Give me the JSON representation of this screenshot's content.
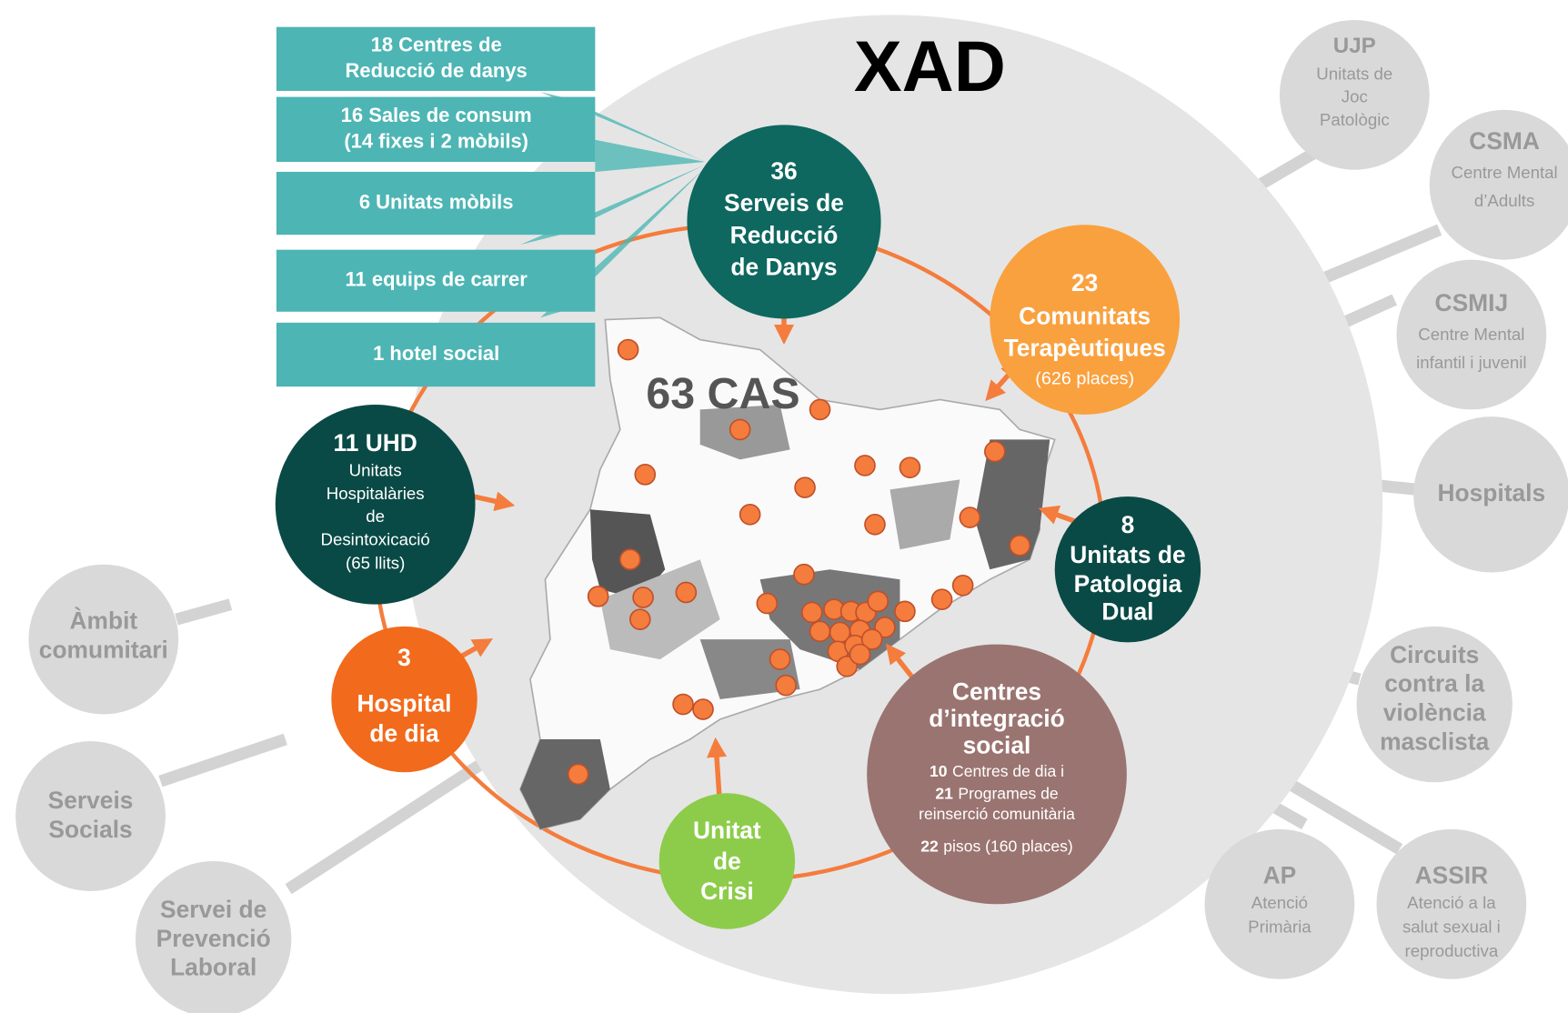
{
  "title": "XAD",
  "map_label": "63 CAS",
  "boxes": [
    {
      "lines": [
        "18 Centres de",
        "Reducció de danys"
      ]
    },
    {
      "lines": [
        "16 Sales de consum",
        "(14 fixes i 2 mòbils)"
      ]
    },
    {
      "lines": [
        "6 Unitats mòbils"
      ]
    },
    {
      "lines": [
        "11 equips de carrer"
      ]
    },
    {
      "lines": [
        "1 hotel social"
      ]
    }
  ],
  "services": [
    {
      "lines": [
        "36",
        "Serveis de",
        "Reducció",
        "de Danys"
      ]
    },
    {
      "lines": [
        "23",
        "Comunitats",
        "Terapèutiques",
        "(626 places)"
      ]
    },
    {
      "lines": [
        "8",
        "Unitats de",
        "Patologia",
        "Dual"
      ]
    },
    {
      "lines": [
        "Centres",
        "d’integració",
        "social",
        {
          "bold": "10",
          "text": "Centres de dia i"
        },
        {
          "bold": "21",
          "text": "Programes de"
        },
        "reinserció comunitària",
        {
          "bold": "22",
          "text": "pisos (160 places)"
        }
      ]
    },
    {
      "lines": [
        "Unitat",
        "de",
        "Crisi"
      ]
    },
    {
      "lines": [
        "3",
        "Hospital",
        "de dia"
      ]
    },
    {
      "lines": [
        "11 UHD",
        "Unitats",
        "Hospitalàries",
        "de",
        "Desintoxicació",
        "(65 llits)"
      ]
    }
  ],
  "external": [
    {
      "lines": [
        "UJP",
        "Unitats de",
        "Joc",
        "Patològic"
      ]
    },
    {
      "lines": [
        "CSMA",
        "Centre Mental",
        "d’Adults"
      ]
    },
    {
      "lines": [
        "CSMIJ",
        "Centre Mental",
        "infantil i juvenil"
      ]
    },
    {
      "lines": [
        "Hospitals"
      ]
    },
    {
      "lines": [
        "Circuits",
        "contra la",
        "violència",
        "masclista"
      ]
    },
    {
      "lines": [
        "AP",
        "Atenció",
        "Primària"
      ]
    },
    {
      "lines": [
        "ASSIR",
        "Atenció a la",
        "salut sexual i",
        "reproductiva"
      ]
    },
    {
      "lines": [
        "Àmbit",
        "comumitari"
      ]
    },
    {
      "lines": [
        "Serveis",
        "Socials"
      ]
    },
    {
      "lines": [
        "Servei de",
        "Prevenció",
        "Laboral"
      ]
    }
  ]
}
